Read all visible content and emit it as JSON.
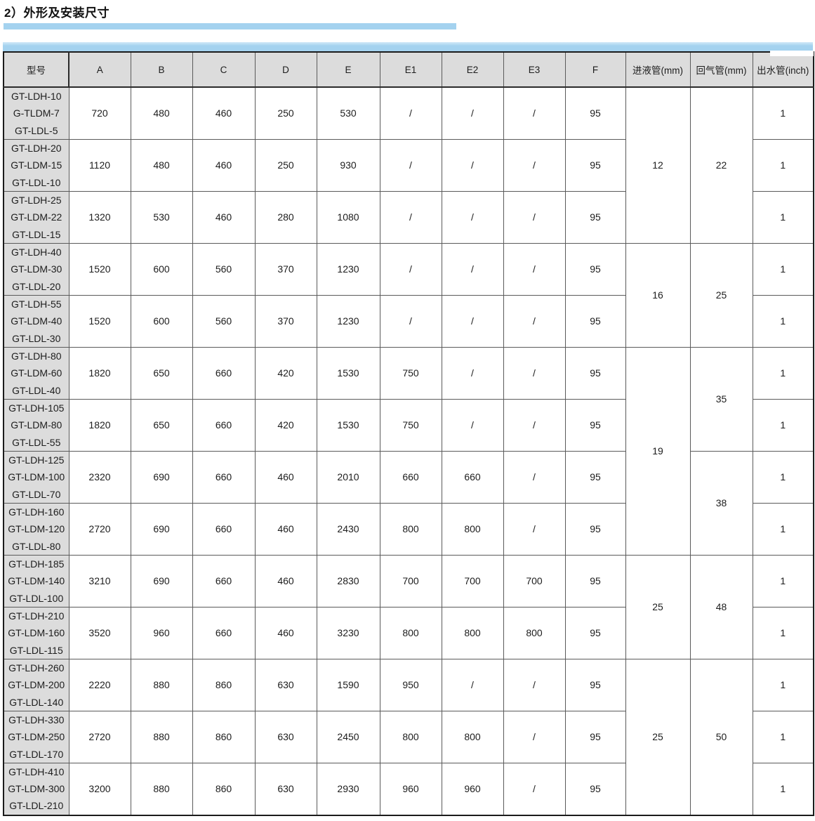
{
  "title": "2）外形及安装尺寸",
  "colors": {
    "accent_blue": "#a4d2ef",
    "header_gray": "#dcdcdc",
    "border_dark": "#1b1b1b"
  },
  "table": {
    "headers": [
      "型号",
      "A",
      "B",
      "C",
      "D",
      "E",
      "E1",
      "E2",
      "E3",
      "F",
      "进液管(mm)",
      "回气管(mm)",
      "出水管(inch)"
    ],
    "rows": [
      {
        "models": [
          "GT-LDH-10",
          "G-TLDM-7",
          "GT-LDL-5"
        ],
        "values": [
          "720",
          "480",
          "460",
          "250",
          "530",
          "/",
          "/",
          "/",
          "95"
        ],
        "outlet": "1"
      },
      {
        "models": [
          "GT-LDH-20",
          "GT-LDM-15",
          "GT-LDL-10"
        ],
        "values": [
          "1120",
          "480",
          "460",
          "250",
          "930",
          "/",
          "/",
          "/",
          "95"
        ],
        "outlet": "1"
      },
      {
        "models": [
          "GT-LDH-25",
          "GT-LDM-22",
          "GT-LDL-15"
        ],
        "values": [
          "1320",
          "530",
          "460",
          "280",
          "1080",
          "/",
          "/",
          "/",
          "95"
        ],
        "outlet": "1"
      },
      {
        "models": [
          "GT-LDH-40",
          "GT-LDM-30",
          "GT-LDL-20"
        ],
        "values": [
          "1520",
          "600",
          "560",
          "370",
          "1230",
          "/",
          "/",
          "/",
          "95"
        ],
        "outlet": "1"
      },
      {
        "models": [
          "GT-LDH-55",
          "GT-LDM-40",
          "GT-LDL-30"
        ],
        "values": [
          "1520",
          "600",
          "560",
          "370",
          "1230",
          "/",
          "/",
          "/",
          "95"
        ],
        "outlet": "1"
      },
      {
        "models": [
          "GT-LDH-80",
          "GT-LDM-60",
          "GT-LDL-40"
        ],
        "values": [
          "1820",
          "650",
          "660",
          "420",
          "1530",
          "750",
          "/",
          "/",
          "95"
        ],
        "outlet": "1"
      },
      {
        "models": [
          "GT-LDH-105",
          "GT-LDM-80",
          "GT-LDL-55"
        ],
        "values": [
          "1820",
          "650",
          "660",
          "420",
          "1530",
          "750",
          "/",
          "/",
          "95"
        ],
        "outlet": "1"
      },
      {
        "models": [
          "GT-LDH-125",
          "GT-LDM-100",
          "GT-LDL-70"
        ],
        "values": [
          "2320",
          "690",
          "660",
          "460",
          "2010",
          "660",
          "660",
          "/",
          "95"
        ],
        "outlet": "1"
      },
      {
        "models": [
          "GT-LDH-160",
          "GT-LDM-120",
          "GT-LDL-80"
        ],
        "values": [
          "2720",
          "690",
          "660",
          "460",
          "2430",
          "800",
          "800",
          "/",
          "95"
        ],
        "outlet": "1"
      },
      {
        "models": [
          "GT-LDH-185",
          "GT-LDM-140",
          "GT-LDL-100"
        ],
        "values": [
          "3210",
          "690",
          "660",
          "460",
          "2830",
          "700",
          "700",
          "700",
          "95"
        ],
        "outlet": "1"
      },
      {
        "models": [
          "GT-LDH-210",
          "GT-LDM-160",
          "GT-LDL-115"
        ],
        "values": [
          "3520",
          "960",
          "660",
          "460",
          "3230",
          "800",
          "800",
          "800",
          "95"
        ],
        "outlet": "1"
      },
      {
        "models": [
          "GT-LDH-260",
          "GT-LDM-200",
          "GT-LDL-140"
        ],
        "values": [
          "2220",
          "880",
          "860",
          "630",
          "1590",
          "950",
          "/",
          "/",
          "95"
        ],
        "outlet": "1"
      },
      {
        "models": [
          "GT-LDH-330",
          "GT-LDM-250",
          "GT-LDL-170"
        ],
        "values": [
          "2720",
          "880",
          "860",
          "630",
          "2450",
          "800",
          "800",
          "/",
          "95"
        ],
        "outlet": "1"
      },
      {
        "models": [
          "GT-LDH-410",
          "GT-LDM-300",
          "GT-LDL-210"
        ],
        "values": [
          "3200",
          "880",
          "860",
          "630",
          "2930",
          "960",
          "960",
          "/",
          "95"
        ],
        "outlet": "1"
      }
    ],
    "liquid_pipe_cells": [
      {
        "value": "12",
        "span": 3
      },
      {
        "value": "16",
        "span": 2
      },
      {
        "value": "19",
        "span": 4
      },
      {
        "value": "25",
        "span": 2
      },
      {
        "value": "25",
        "span": 3
      }
    ],
    "gas_pipe_cells": [
      {
        "value": "22",
        "span": 3
      },
      {
        "value": "25",
        "span": 2
      },
      {
        "value": "35",
        "span": 2
      },
      {
        "value": "38",
        "span": 2
      },
      {
        "value": "48",
        "span": 2
      },
      {
        "value": "50",
        "span": 3
      }
    ]
  }
}
